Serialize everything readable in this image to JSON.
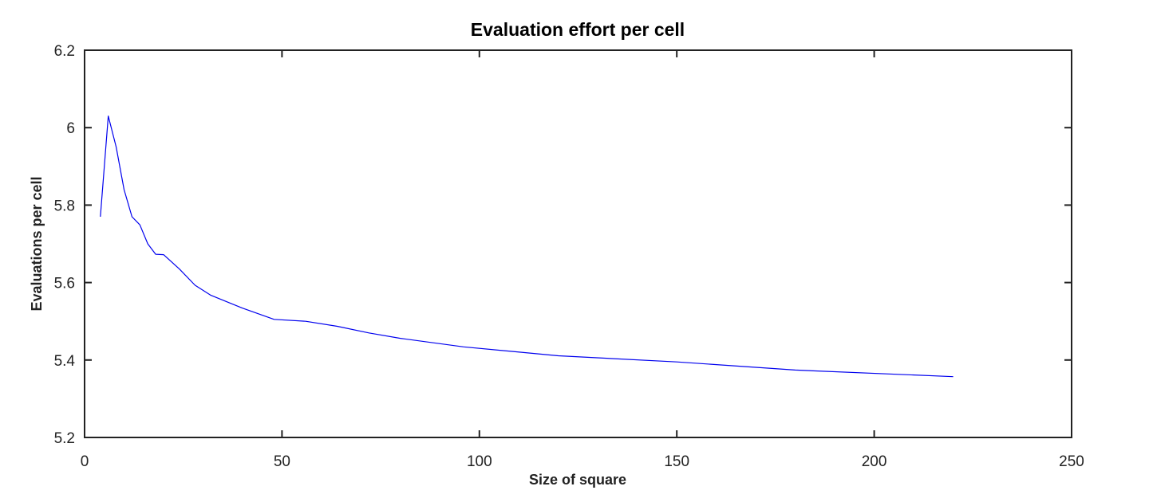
{
  "chart_data": {
    "type": "line",
    "title": "Evaluation effort per cell",
    "xlabel": "Size of square",
    "ylabel": "Evaluations per cell",
    "xlim": [
      0,
      250
    ],
    "ylim": [
      5.2,
      6.2
    ],
    "x_ticks": [
      0,
      50,
      100,
      150,
      200,
      250
    ],
    "y_ticks": [
      5.2,
      5.4,
      5.6,
      5.8,
      6.0,
      6.2
    ],
    "x_tick_labels": [
      "0",
      "50",
      "100",
      "150",
      "200",
      "250"
    ],
    "y_tick_labels": [
      "5.2",
      "5.4",
      "5.6",
      "5.8",
      "6",
      "6.2"
    ],
    "grid": false,
    "series": [
      {
        "color": "#0000ee",
        "x": [
          4,
          6,
          8,
          10,
          12,
          14,
          16,
          18,
          20,
          24,
          28,
          32,
          40,
          48,
          56,
          64,
          72,
          80,
          96,
          120,
          150,
          180,
          220
        ],
        "y": [
          5.77,
          6.03,
          5.95,
          5.84,
          5.77,
          5.749,
          5.7,
          5.673,
          5.672,
          5.635,
          5.593,
          5.567,
          5.534,
          5.505,
          5.5,
          5.487,
          5.47,
          5.456,
          5.434,
          5.411,
          5.395,
          5.374,
          5.357
        ]
      }
    ]
  }
}
